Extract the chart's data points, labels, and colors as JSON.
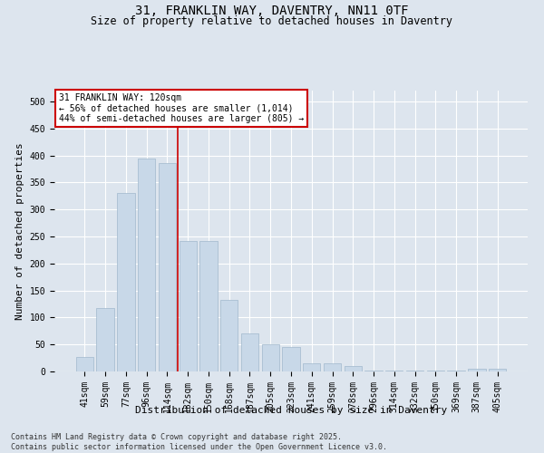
{
  "title": "31, FRANKLIN WAY, DAVENTRY, NN11 0TF",
  "subtitle": "Size of property relative to detached houses in Daventry",
  "xlabel": "Distribution of detached houses by size in Daventry",
  "ylabel": "Number of detached properties",
  "categories": [
    "41sqm",
    "59sqm",
    "77sqm",
    "96sqm",
    "114sqm",
    "132sqm",
    "150sqm",
    "168sqm",
    "187sqm",
    "205sqm",
    "223sqm",
    "241sqm",
    "259sqm",
    "278sqm",
    "296sqm",
    "314sqm",
    "332sqm",
    "350sqm",
    "369sqm",
    "387sqm",
    "405sqm"
  ],
  "values": [
    27,
    117,
    330,
    395,
    385,
    242,
    242,
    133,
    70,
    50,
    45,
    15,
    15,
    10,
    2,
    2,
    2,
    1,
    1,
    5,
    5
  ],
  "bar_color": "#c8d8e8",
  "bar_edge_color": "#a0b8cc",
  "vline_x_index": 4.5,
  "vline_color": "#cc0000",
  "annotation_title": "31 FRANKLIN WAY: 120sqm",
  "annotation_line1": "← 56% of detached houses are smaller (1,014)",
  "annotation_line2": "44% of semi-detached houses are larger (805) →",
  "annotation_box_color": "#cc0000",
  "annotation_text_color": "#000000",
  "annotation_bg": "#ffffff",
  "ylim": [
    0,
    520
  ],
  "yticks": [
    0,
    50,
    100,
    150,
    200,
    250,
    300,
    350,
    400,
    450,
    500
  ],
  "bg_color": "#dde5ee",
  "plot_bg_color": "#dde5ee",
  "footer_line1": "Contains HM Land Registry data © Crown copyright and database right 2025.",
  "footer_line2": "Contains public sector information licensed under the Open Government Licence v3.0.",
  "title_fontsize": 10,
  "subtitle_fontsize": 8.5,
  "axis_label_fontsize": 8,
  "tick_fontsize": 7,
  "footer_fontsize": 6
}
